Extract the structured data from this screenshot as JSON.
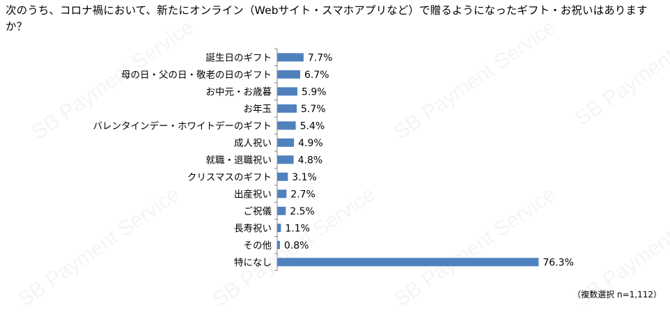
{
  "title": "次のうち、コロナ禍において、新たにオンライン（Webサイト・スマホアプリなど）で贈るようになったギフト・お祝いはありますか？",
  "watermark": "SB Payment Service",
  "footnote": "（複数選択 n=1,112）",
  "colors": {
    "bar": "#4F81BD",
    "axis": "#868686"
  },
  "chart_data": {
    "type": "bar",
    "orientation": "horizontal",
    "categories": [
      "誕生日のギフト",
      "母の日・父の日・敬老の日のギフト",
      "お中元・お歳暮",
      "お年玉",
      "バレンタインデー・ホワイトデーのギフト",
      "成人祝い",
      "就職・退職祝い",
      "クリスマスのギフト",
      "出産祝い",
      "ご祝儀",
      "長寿祝い",
      "その他",
      "特になし"
    ],
    "values": [
      7.7,
      6.7,
      5.9,
      5.7,
      5.4,
      4.9,
      4.8,
      3.1,
      2.7,
      2.5,
      1.1,
      0.8,
      76.3
    ],
    "value_labels": [
      "7.7%",
      "6.7%",
      "5.9%",
      "5.7%",
      "5.4%",
      "4.9%",
      "4.8%",
      "3.1%",
      "2.7%",
      "2.5%",
      "1.1%",
      "0.8%",
      "76.3%"
    ],
    "unit": "%",
    "xlim": [
      0,
      100
    ],
    "grid": false,
    "legend": "none"
  }
}
